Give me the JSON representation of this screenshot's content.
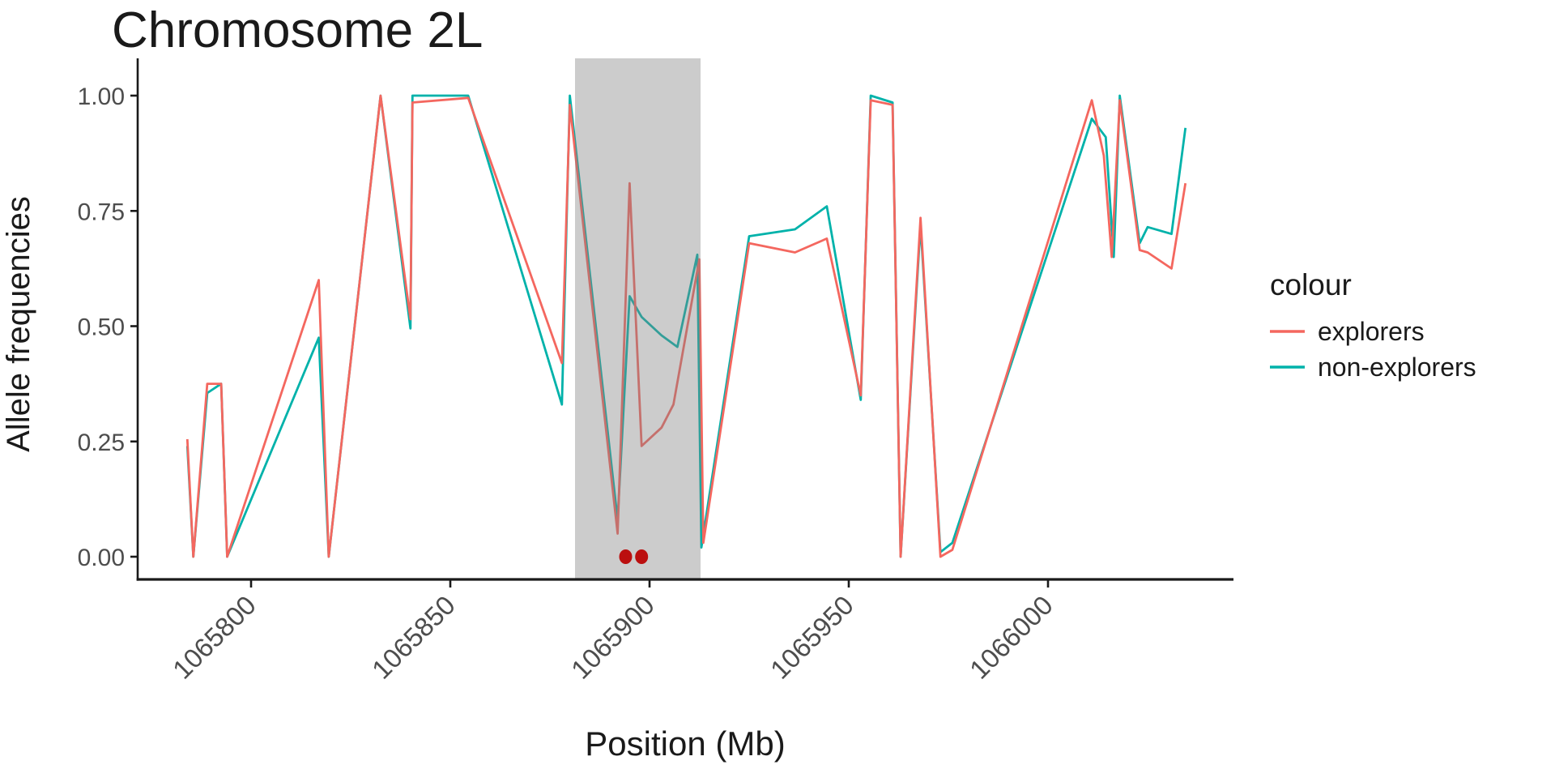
{
  "chart_data": {
    "type": "line",
    "title": "Chromosome 2L",
    "xlabel": "Position (Mb)",
    "ylabel": "Allele frequencies",
    "grid": "off",
    "x_ticks": [
      {
        "label": "1065800",
        "value": 1065800
      },
      {
        "label": "1065850",
        "value": 1065850
      },
      {
        "label": "1065900",
        "value": 1065900
      },
      {
        "label": "1065950",
        "value": 1065950
      },
      {
        "label": "1066000",
        "value": 1066000
      }
    ],
    "y_ticks": [
      {
        "label": "1.00",
        "value": 1.0
      },
      {
        "label": "0.75",
        "value": 0.75
      },
      {
        "label": "0.50",
        "value": 0.5
      },
      {
        "label": "0.25",
        "value": 0.25
      },
      {
        "label": "0.00",
        "value": 0.0
      }
    ],
    "xlim": [
      1065771,
      1066047
    ],
    "ylim": [
      -0.05,
      1.05
    ],
    "tick_label_color": "#4d4d4d",
    "axis_color": "#1a1a1a",
    "highlight_band": {
      "x_start": 1065881.3,
      "x_end": 1065912.8,
      "color": "rgba(128,128,128,0.40)"
    },
    "marked_points": {
      "color": "#bb0f0f",
      "y": 0,
      "x": [
        1065894,
        1065898
      ]
    },
    "legend": {
      "title": "colour",
      "position": "right",
      "entries": [
        {
          "label": "explorers",
          "color": "#f4675f"
        },
        {
          "label": "non-explorers",
          "color": "#00b2aa"
        }
      ]
    },
    "series": [
      {
        "name": "explorers",
        "color": "#f4675f",
        "points": [
          [
            1065784,
            0.255
          ],
          [
            1065785.5,
            0.0
          ],
          [
            1065789,
            0.375
          ],
          [
            1065792.5,
            0.375
          ],
          [
            1065794,
            0.0
          ],
          [
            1065817,
            0.6
          ],
          [
            1065819.5,
            0.0
          ],
          [
            1065832.5,
            1.0
          ],
          [
            1065840,
            0.515
          ],
          [
            1065840.5,
            0.985
          ],
          [
            1065854.5,
            0.995
          ],
          [
            1065878,
            0.42
          ],
          [
            1065880,
            0.98
          ],
          [
            1065892,
            0.05
          ],
          [
            1065895,
            0.81
          ],
          [
            1065898,
            0.24
          ],
          [
            1065903,
            0.28
          ],
          [
            1065906,
            0.33
          ],
          [
            1065912.5,
            0.645
          ],
          [
            1065913.5,
            0.03
          ],
          [
            1065925,
            0.68
          ],
          [
            1065936.5,
            0.66
          ],
          [
            1065944.5,
            0.69
          ],
          [
            1065953,
            0.35
          ],
          [
            1065955.5,
            0.99
          ],
          [
            1065961,
            0.98
          ],
          [
            1065963,
            0.0
          ],
          [
            1065968,
            0.735
          ],
          [
            1065973,
            0.0
          ],
          [
            1065976,
            0.015
          ],
          [
            1066011,
            0.99
          ],
          [
            1066014,
            0.87
          ],
          [
            1066016,
            0.65
          ],
          [
            1066018,
            0.99
          ],
          [
            1066023,
            0.665
          ],
          [
            1066025,
            0.66
          ],
          [
            1066031,
            0.625
          ],
          [
            1066034.5,
            0.81
          ]
        ]
      },
      {
        "name": "non-explorers",
        "color": "#00b2aa",
        "points": [
          [
            1065784,
            0.24
          ],
          [
            1065785.5,
            0.0
          ],
          [
            1065789,
            0.355
          ],
          [
            1065792.5,
            0.375
          ],
          [
            1065794,
            0.0
          ],
          [
            1065817,
            0.475
          ],
          [
            1065819.5,
            0.0
          ],
          [
            1065832.5,
            1.0
          ],
          [
            1065840,
            0.495
          ],
          [
            1065840.5,
            1.0
          ],
          [
            1065854.5,
            1.0
          ],
          [
            1065878,
            0.33
          ],
          [
            1065880,
            1.0
          ],
          [
            1065892,
            0.08
          ],
          [
            1065895,
            0.565
          ],
          [
            1065898,
            0.52
          ],
          [
            1065903,
            0.48
          ],
          [
            1065907,
            0.455
          ],
          [
            1065912,
            0.655
          ],
          [
            1065913,
            0.02
          ],
          [
            1065925,
            0.695
          ],
          [
            1065936.5,
            0.71
          ],
          [
            1065944.5,
            0.76
          ],
          [
            1065953,
            0.34
          ],
          [
            1065955.5,
            1.0
          ],
          [
            1065961,
            0.985
          ],
          [
            1065963,
            0.0
          ],
          [
            1065968,
            0.72
          ],
          [
            1065973,
            0.01
          ],
          [
            1065976,
            0.03
          ],
          [
            1066011,
            0.95
          ],
          [
            1066014.5,
            0.91
          ],
          [
            1066016.5,
            0.65
          ],
          [
            1066018,
            1.0
          ],
          [
            1066023,
            0.68
          ],
          [
            1066025,
            0.715
          ],
          [
            1066031,
            0.7
          ],
          [
            1066034.5,
            0.93
          ]
        ]
      }
    ]
  }
}
